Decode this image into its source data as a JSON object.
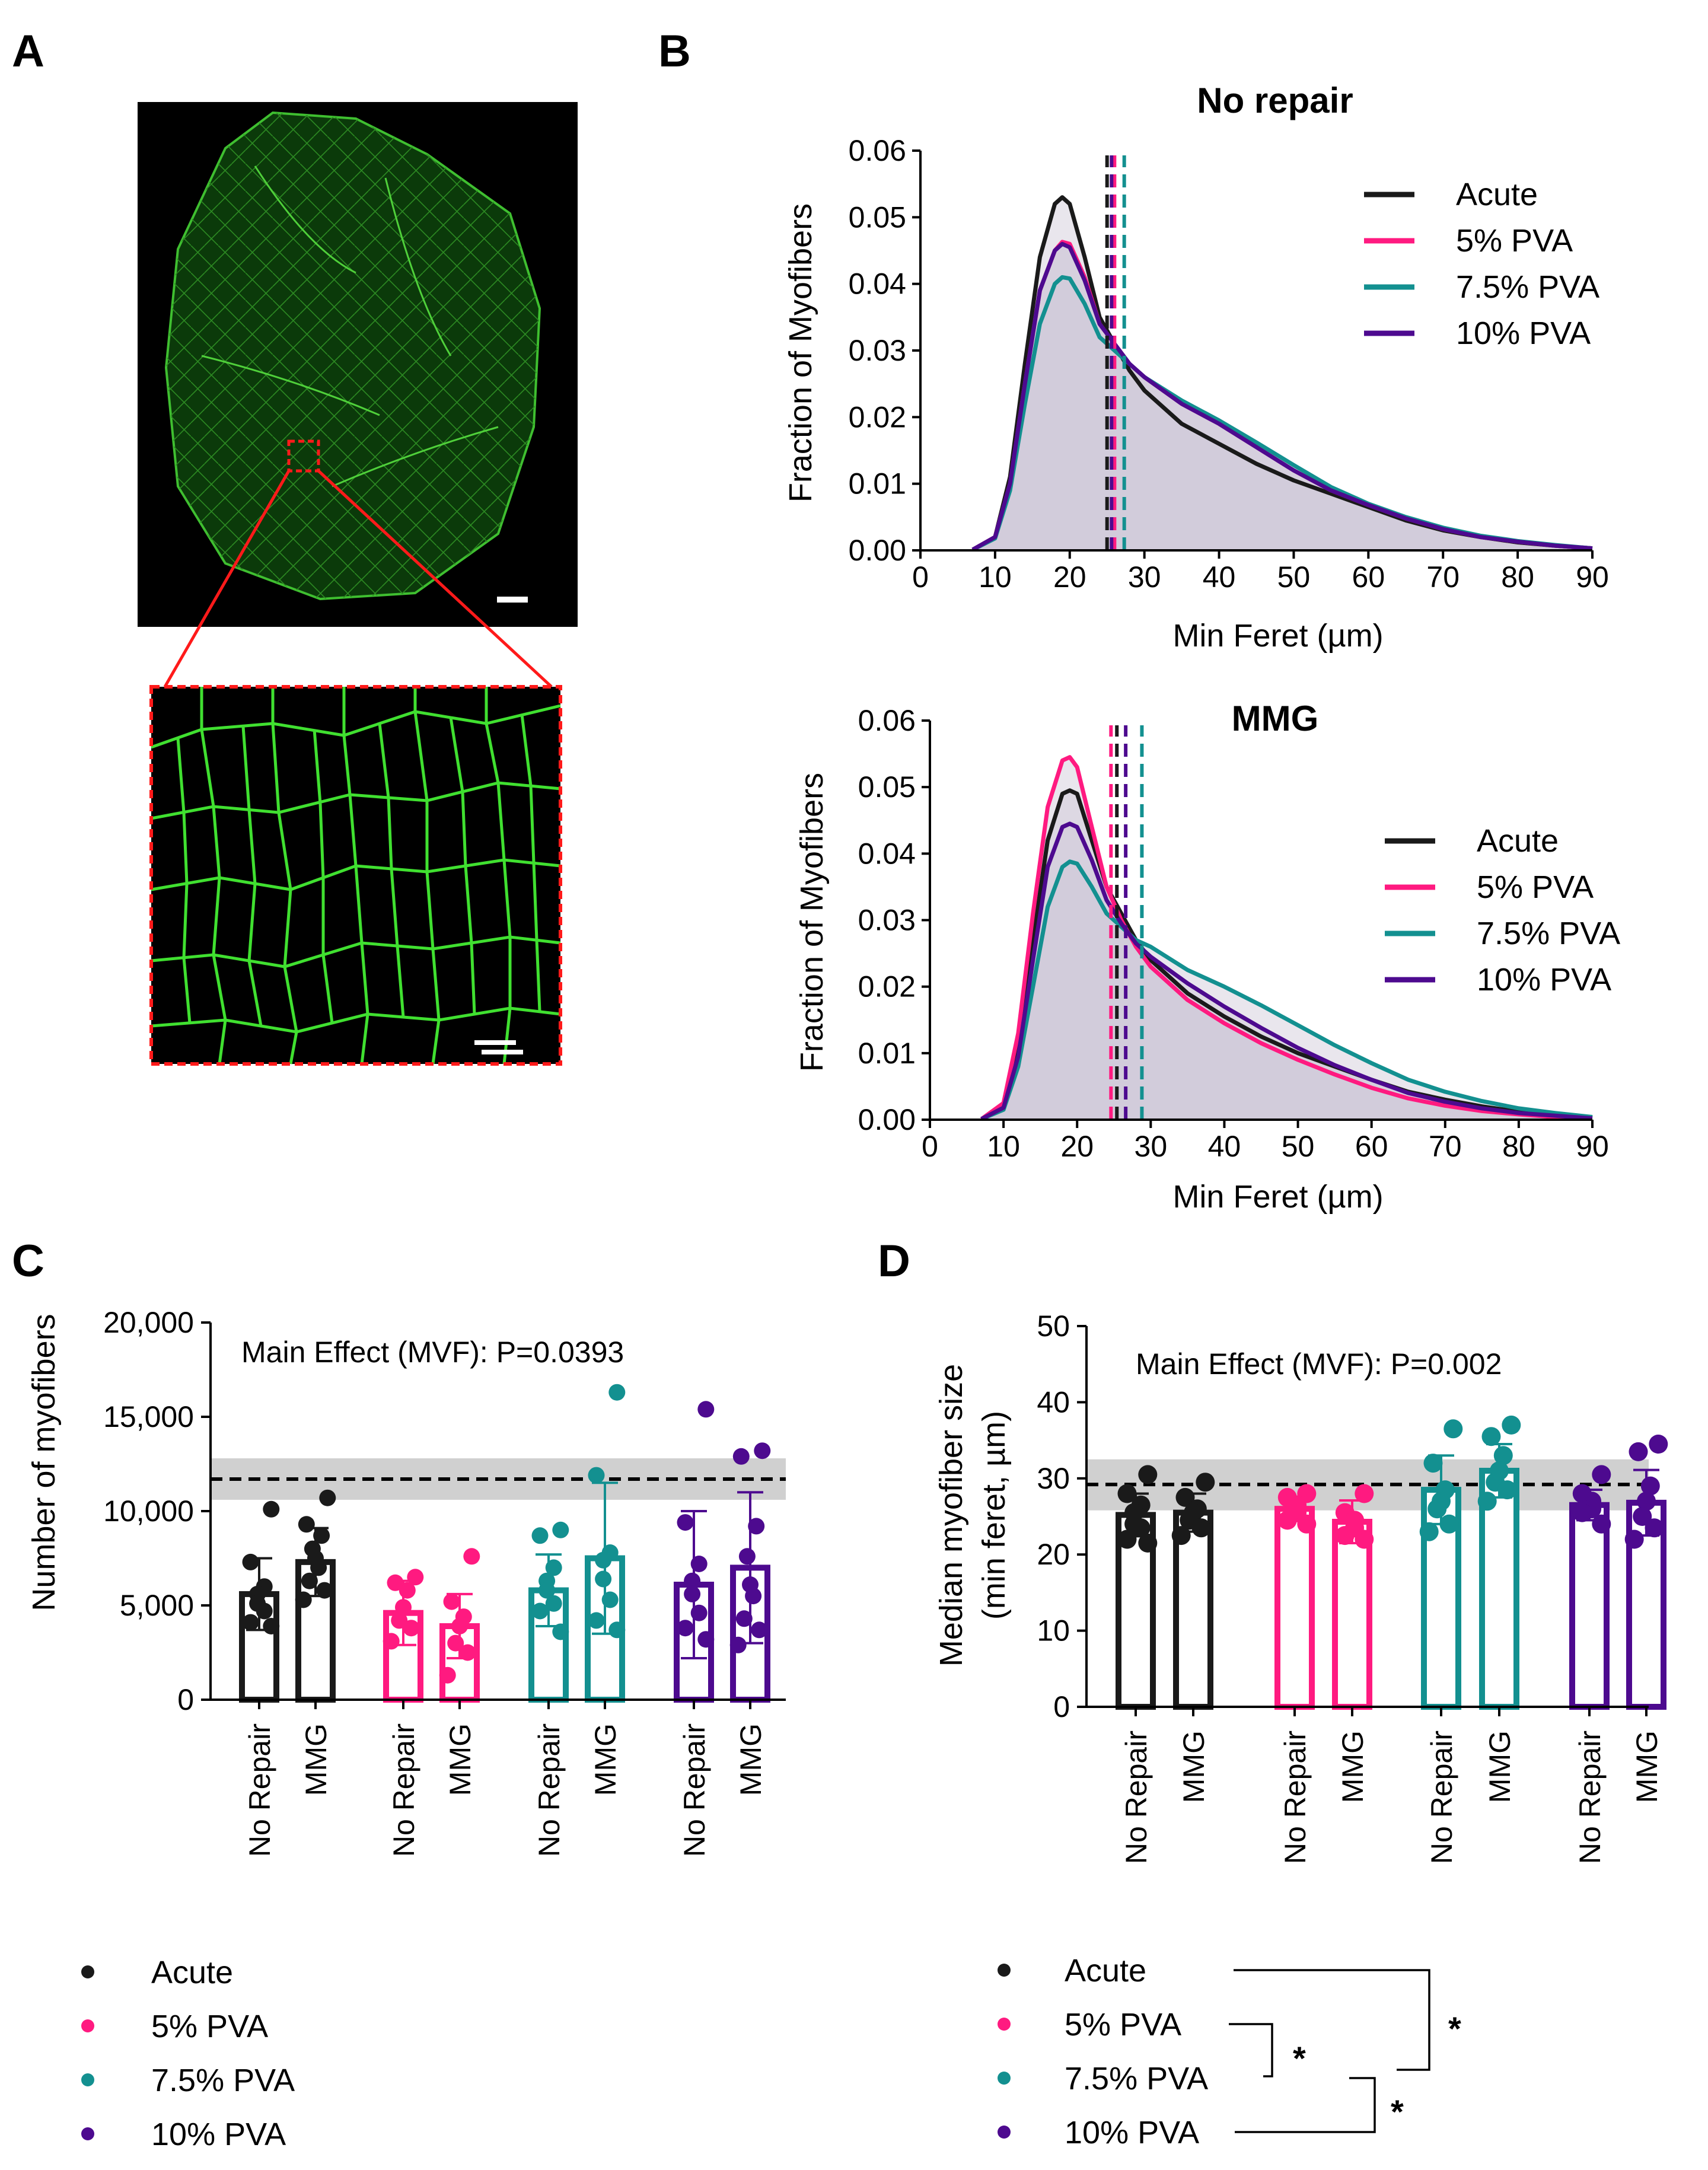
{
  "panels": {
    "a": "A",
    "b": "B",
    "c": "C",
    "d": "D"
  },
  "colors": {
    "acute": "#1a1a1a",
    "pva5": "#ff1a80",
    "pva75": "#139090",
    "pva10": "#4d0a8f",
    "mean_band": "#d0d0d0",
    "fill": "#cfc8d8"
  },
  "groups": [
    {
      "key": "acute",
      "label": "Acute"
    },
    {
      "key": "pva5",
      "label": "5% PVA"
    },
    {
      "key": "pva75",
      "label": "7.5% PVA"
    },
    {
      "key": "pva10",
      "label": "10% PVA"
    }
  ],
  "panel_a": {
    "overview_icon": "muscle-cross-section-image",
    "zoom_icon": "myofiber-zoom-image"
  },
  "chart_data": [
    {
      "id": "B_top",
      "type": "area",
      "title": "No repair",
      "xlabel": "Min  Feret (µm)",
      "ylabel": "Fraction of Myofibers",
      "xlim": [
        0,
        90
      ],
      "ylim": [
        0,
        0.06
      ],
      "xticks": [
        "0",
        "10",
        "20",
        "30",
        "40",
        "50",
        "60",
        "70",
        "80",
        "90"
      ],
      "yticks": [
        "0.00",
        "0.01",
        "0.02",
        "0.03",
        "0.04",
        "0.05",
        "0.06"
      ],
      "x": [
        7,
        10,
        12,
        14,
        16,
        18,
        19,
        20,
        22,
        24,
        26,
        28,
        30,
        35,
        40,
        45,
        50,
        55,
        60,
        65,
        70,
        75,
        80,
        85,
        90
      ],
      "series": [
        {
          "key": "acute",
          "name": "Acute",
          "peak": 0.053,
          "median": 25.0,
          "values": [
            0.0001,
            0.002,
            0.011,
            0.028,
            0.044,
            0.052,
            0.053,
            0.052,
            0.044,
            0.035,
            0.031,
            0.027,
            0.024,
            0.019,
            0.016,
            0.013,
            0.0105,
            0.0085,
            0.0065,
            0.0045,
            0.003,
            0.002,
            0.0012,
            0.0007,
            0.0003
          ]
        },
        {
          "key": "pva5",
          "name": "5% PVA",
          "peak": 0.0463,
          "median": 26.0,
          "values": [
            0.0001,
            0.002,
            0.01,
            0.025,
            0.039,
            0.045,
            0.0463,
            0.046,
            0.041,
            0.034,
            0.031,
            0.028,
            0.026,
            0.022,
            0.019,
            0.0155,
            0.012,
            0.009,
            0.0068,
            0.0048,
            0.0032,
            0.002,
            0.0013,
            0.0007,
            0.0003
          ]
        },
        {
          "key": "pva75",
          "name": "7.5% PVA",
          "peak": 0.041,
          "median": 27.3,
          "values": [
            0.0001,
            0.0018,
            0.009,
            0.022,
            0.034,
            0.04,
            0.041,
            0.0408,
            0.037,
            0.032,
            0.03,
            0.028,
            0.026,
            0.0225,
            0.0195,
            0.0162,
            0.0128,
            0.0095,
            0.007,
            0.005,
            0.0034,
            0.0022,
            0.0014,
            0.0008,
            0.0003
          ]
        },
        {
          "key": "pva10",
          "name": "10% PVA",
          "peak": 0.046,
          "median": 25.6,
          "values": [
            0.0001,
            0.002,
            0.01,
            0.025,
            0.039,
            0.045,
            0.046,
            0.0455,
            0.0405,
            0.034,
            0.031,
            0.028,
            0.026,
            0.022,
            0.019,
            0.0155,
            0.012,
            0.009,
            0.0068,
            0.0048,
            0.0032,
            0.002,
            0.0013,
            0.0007,
            0.0003
          ]
        }
      ]
    },
    {
      "id": "B_bottom",
      "type": "area",
      "title": "MMG",
      "xlabel": "Min  Feret (µm)",
      "ylabel": "Fraction of Myofibers",
      "xlim": [
        0,
        90
      ],
      "ylim": [
        0,
        0.06
      ],
      "xticks": [
        "0",
        "10",
        "20",
        "30",
        "40",
        "50",
        "60",
        "70",
        "80",
        "90"
      ],
      "yticks": [
        "0.00",
        "0.01",
        "0.02",
        "0.03",
        "0.04",
        "0.05",
        "0.06"
      ],
      "x": [
        7,
        10,
        12,
        14,
        16,
        18,
        19,
        20,
        22,
        24,
        26,
        28,
        30,
        35,
        40,
        45,
        50,
        55,
        60,
        65,
        70,
        75,
        80,
        85,
        90
      ],
      "series": [
        {
          "key": "acute",
          "name": "Acute",
          "peak": 0.0495,
          "median": 25.4,
          "values": [
            0.0001,
            0.002,
            0.011,
            0.027,
            0.042,
            0.049,
            0.0495,
            0.049,
            0.042,
            0.035,
            0.031,
            0.027,
            0.024,
            0.019,
            0.0155,
            0.0125,
            0.01,
            0.008,
            0.006,
            0.0042,
            0.003,
            0.002,
            0.0012,
            0.0007,
            0.0003
          ]
        },
        {
          "key": "pva5",
          "name": "5% PVA",
          "peak": 0.0545,
          "median": 24.6,
          "values": [
            0.0001,
            0.0025,
            0.013,
            0.031,
            0.047,
            0.054,
            0.0545,
            0.053,
            0.044,
            0.035,
            0.03,
            0.026,
            0.023,
            0.018,
            0.0145,
            0.0115,
            0.009,
            0.0068,
            0.0048,
            0.0032,
            0.0021,
            0.0013,
            0.0008,
            0.0004,
            0.0002
          ]
        },
        {
          "key": "pva75",
          "name": "7.5% PVA",
          "peak": 0.0388,
          "median": 28.8,
          "values": [
            0.0001,
            0.0015,
            0.008,
            0.02,
            0.032,
            0.038,
            0.0388,
            0.0385,
            0.035,
            0.031,
            0.029,
            0.027,
            0.026,
            0.0225,
            0.02,
            0.0172,
            0.0142,
            0.0112,
            0.0085,
            0.006,
            0.0042,
            0.0028,
            0.0017,
            0.001,
            0.0004
          ]
        },
        {
          "key": "pva10",
          "name": "10% PVA",
          "peak": 0.0445,
          "median": 26.6,
          "values": [
            0.0001,
            0.0018,
            0.0095,
            0.024,
            0.038,
            0.044,
            0.0445,
            0.044,
            0.039,
            0.033,
            0.0295,
            0.0265,
            0.0245,
            0.0205,
            0.017,
            0.0138,
            0.0108,
            0.0082,
            0.006,
            0.004,
            0.0027,
            0.0017,
            0.001,
            0.0006,
            0.0002
          ]
        }
      ]
    },
    {
      "id": "C",
      "type": "bar",
      "ylabel": "Number of myofibers",
      "ylim": [
        0,
        20000
      ],
      "yticks": [
        "0",
        "5,000",
        "10,000",
        "15,000",
        "20,000"
      ],
      "ytick_values": [
        0,
        5000,
        10000,
        15000,
        20000
      ],
      "annotation": "Main Effect (MVF): P=0.0393",
      "reference": {
        "mean": 11700,
        "band": [
          10600,
          12800
        ]
      },
      "categories": [
        "No Repair",
        "MMG",
        "No Repair",
        "MMG",
        "No Repair",
        "MMG",
        "No Repair",
        "MMG"
      ],
      "bars": [
        {
          "group": "acute",
          "category": "No Repair",
          "mean": 5600,
          "sd": 1900,
          "points": [
            10100,
            7300,
            6000,
            5600,
            5100,
            4700,
            4100,
            3900
          ]
        },
        {
          "group": "acute",
          "category": "MMG",
          "mean": 7300,
          "sd": 1800,
          "points": [
            10700,
            9300,
            8700,
            8000,
            7500,
            7000,
            6300,
            5800,
            5300
          ]
        },
        {
          "group": "pva5",
          "category": "No Repair",
          "mean": 4600,
          "sd": 1700,
          "points": [
            6500,
            6200,
            5800,
            4900,
            4200,
            3800,
            3100
          ]
        },
        {
          "group": "pva5",
          "category": "MMG",
          "mean": 3900,
          "sd": 1700,
          "points": [
            7600,
            5200,
            4400,
            3900,
            3000,
            2500,
            1300
          ]
        },
        {
          "group": "pva75",
          "category": "No Repair",
          "mean": 5800,
          "sd": 1900,
          "points": [
            9000,
            8700,
            7000,
            6300,
            5800,
            5100,
            4700,
            3600
          ]
        },
        {
          "group": "pva75",
          "category": "MMG",
          "mean": 7500,
          "sd": 4000,
          "points": [
            16300,
            11900,
            7800,
            7400,
            6400,
            5300,
            4200,
            3700
          ]
        },
        {
          "group": "pva10",
          "category": "No Repair",
          "mean": 6100,
          "sd": 3900,
          "points": [
            15400,
            9400,
            7200,
            6300,
            5600,
            4600,
            3800,
            3200
          ]
        },
        {
          "group": "pva10",
          "category": "MMG",
          "mean": 7000,
          "sd": 4000,
          "points": [
            13200,
            12900,
            9200,
            7600,
            6100,
            5500,
            4300,
            3700,
            2900
          ]
        }
      ]
    },
    {
      "id": "D",
      "type": "bar",
      "ylabel": "Median myofiber size",
      "ylabel2": "(min feret, µm)",
      "ylim": [
        0,
        50
      ],
      "yticks": [
        "0",
        "10",
        "20",
        "30",
        "40",
        "50"
      ],
      "ytick_values": [
        0,
        10,
        20,
        30,
        40,
        50
      ],
      "annotation": "Main  Effect (MVF):  P=0.002",
      "reference": {
        "mean": 29.2,
        "band": [
          25.8,
          32.5
        ]
      },
      "categories": [
        "No Repair",
        "MMG",
        "No Repair",
        "MMG",
        "No Repair",
        "MMG",
        "No Repair",
        "MMG"
      ],
      "bars": [
        {
          "group": "acute",
          "category": "No Repair",
          "mean": 25.2,
          "sd": 2.8,
          "points": [
            30.5,
            28.0,
            26.5,
            25.5,
            24.0,
            23.5,
            22.0,
            21.5
          ]
        },
        {
          "group": "acute",
          "category": "MMG",
          "mean": 25.5,
          "sd": 2.5,
          "points": [
            29.5,
            27.5,
            26.0,
            25.5,
            24.5,
            23.5,
            22.5
          ]
        },
        {
          "group": "pva5",
          "category": "No Repair",
          "mean": 26.0,
          "sd": 1.6,
          "points": [
            28.0,
            27.5,
            26.5,
            25.5,
            24.5,
            24.0
          ]
        },
        {
          "group": "pva5",
          "category": "MMG",
          "mean": 24.3,
          "sd": 2.8,
          "points": [
            28.0,
            25.5,
            24.5,
            23.5,
            22.5,
            22.0
          ]
        },
        {
          "group": "pva75",
          "category": "No Repair",
          "mean": 28.5,
          "sd": 4.5,
          "points": [
            36.5,
            32.0,
            28.5,
            27.0,
            26.0,
            24.0,
            23.0
          ]
        },
        {
          "group": "pva75",
          "category": "MMG",
          "mean": 31.0,
          "sd": 3.5,
          "points": [
            37.0,
            35.5,
            33.0,
            31.0,
            29.5,
            28.5,
            27.0
          ]
        },
        {
          "group": "pva10",
          "category": "No Repair",
          "mean": 26.5,
          "sd": 2.0,
          "points": [
            30.5,
            28.0,
            27.0,
            26.0,
            25.5,
            24.0
          ]
        },
        {
          "group": "pva10",
          "category": "MMG",
          "mean": 26.8,
          "sd": 4.3,
          "points": [
            34.5,
            33.5,
            29.0,
            27.0,
            25.0,
            23.5,
            22.0
          ]
        }
      ],
      "significance": [
        {
          "between": [
            "Acute",
            "7.5% PVA"
          ],
          "label": "*"
        },
        {
          "between": [
            "5% PVA",
            "7.5% PVA"
          ],
          "label": "*"
        },
        {
          "between": [
            "7.5% PVA",
            "10% PVA"
          ],
          "label": "*"
        }
      ]
    }
  ]
}
